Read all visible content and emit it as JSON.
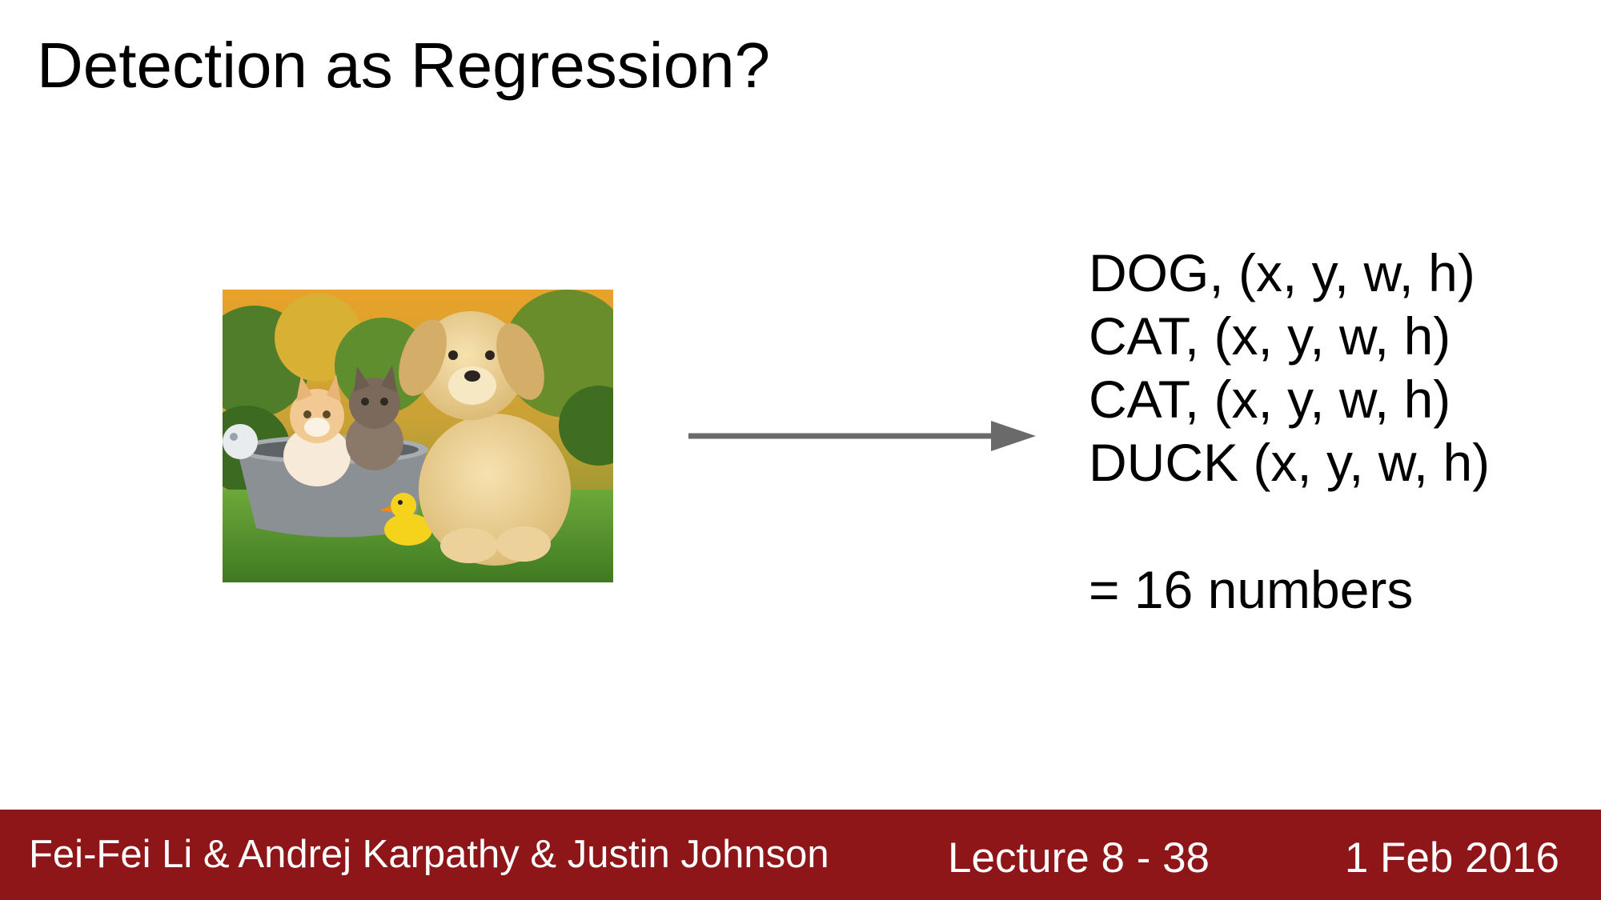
{
  "slide": {
    "title": "Detection as Regression?"
  },
  "detections": [
    "DOG, (x, y, w, h)",
    "CAT, (x, y, w, h)",
    "CAT, (x, y, w, h)",
    "DUCK (x, y, w, h)"
  ],
  "summary": "= 16 numbers",
  "photo": {
    "icon": "photo-puppy-kittens-duck"
  },
  "footer": {
    "authors": "Fei-Fei Li & Andrej Karpathy & Justin Johnson",
    "lecture": "Lecture 8 - 38",
    "date": "1 Feb 2016",
    "color": "#8e1518"
  }
}
